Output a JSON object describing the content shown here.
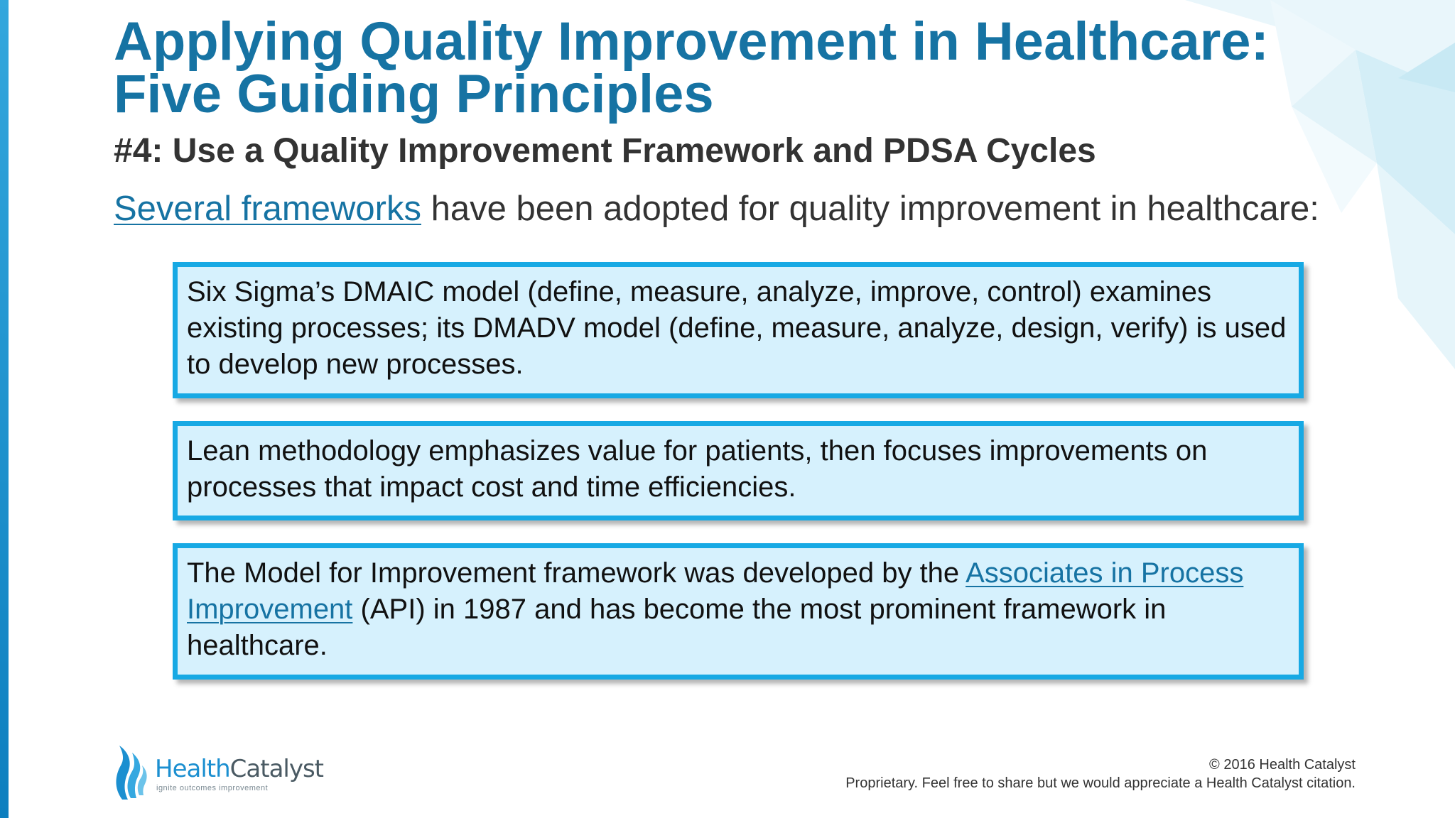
{
  "slide": {
    "title_line1": "Applying Quality Improvement in Healthcare:",
    "title_line2": "Five Guiding Principles",
    "subtitle": "#4: Use a Quality Improvement Framework and PDSA Cycles",
    "intro_link": "Several frameworks",
    "intro_rest": " have been adopted for quality improvement in healthcare:"
  },
  "boxes": [
    {
      "text": "Six Sigma’s DMAIC model (define, measure, analyze, improve, control) examines existing processes; its DMADV model (define, measure, analyze, design, verify) is used to develop new processes."
    },
    {
      "text": "Lean methodology emphasizes value for patients, then focuses improvements on processes that impact cost and time efficiencies."
    },
    {
      "text_before": "The Model for Improvement framework was developed by the ",
      "link": "Associates in Process Improvement",
      "text_after": " (API) in 1987 and has become the most prominent framework in healthcare."
    }
  ],
  "logo": {
    "name_part1": "Health",
    "name_part2": "Catalyst",
    "tagline": "ignite outcomes improvement"
  },
  "footer": {
    "copyright": "© 2016 Health Catalyst",
    "note": "Proprietary. Feel free to share but we would appreciate a Health Catalyst citation."
  },
  "colors": {
    "title": "#1673a3",
    "link": "#1673a3",
    "box_border": "#17a9e4",
    "box_fill": "#d6f1fd",
    "accent_stripe": "#2a9fd8"
  }
}
